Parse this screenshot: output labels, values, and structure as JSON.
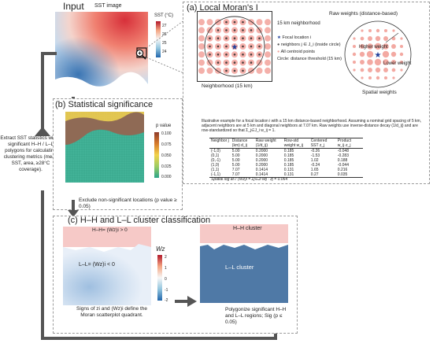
{
  "input": {
    "heading": "Input",
    "sst_image_label": "SST image",
    "colorbar_title": "SST (°C)",
    "colorbar_ticks": [
      "27",
      "26",
      "25",
      "24"
    ]
  },
  "side_note": "Extract SST statistics within significant H–H / L–L polygons for calculating clustering metrics (mean SST, area, ≥28°C coverage).",
  "panel_a": {
    "title": "(a) Local Moran's I",
    "neighborhood_top": "15 km neighborhood",
    "raw_weights_label": "Raw weights (distance-based)",
    "legend": [
      {
        "glyph": "★",
        "text": "Focal location i"
      },
      {
        "glyph": "●",
        "text": "neighbors j ∈ J_i (inside circle)"
      },
      {
        "glyph": "●",
        "text": "All centroid points"
      },
      {
        "glyph": "",
        "text": "Circle: distance threshold (15 km)"
      }
    ],
    "neighborhood_bottom": "Neighborhood (15 km)",
    "higher_weight": "Higher weight",
    "lower_weight": "Lower weight",
    "spatial_weights": "Spatial weights",
    "caption": "Illustrative example for a focal location i with a 15 km distance-based neighborhood. Assuming a nominal grid spacing of 5 km, adjacent neighbors are at 5 km and diagonal neighbors at 7.07 km. Raw weights use inverse-distance decay (1/d_ij) and are row-standardized so that Σ_j∈J_i w_ij = 1.",
    "table": {
      "headers": [
        "Neighbor j",
        "Distance (km) d_ij",
        "Raw weight (1/d_ij)",
        "Row-std weight w_ij",
        "Centered SST z_j",
        "Product w_ij·z_j"
      ],
      "rows": [
        [
          "(-1,0)",
          "5.00",
          "0.2000",
          "0.185",
          "-0.26",
          "-0.048"
        ],
        [
          "(0,1)",
          "5.00",
          "0.2000",
          "0.185",
          "-1.53",
          "-0.283"
        ],
        [
          "(0,-1)",
          "5.00",
          "0.2000",
          "0.185",
          "1.02",
          "0.188"
        ],
        [
          "(1,0)",
          "5.00",
          "0.2000",
          "0.185",
          "-0.24",
          "-0.044"
        ],
        [
          "(1,1)",
          "7.07",
          "0.1414",
          "0.131",
          "1.65",
          "0.216"
        ],
        [
          "(-1,1)",
          "7.07",
          "0.1414",
          "0.131",
          "0.27",
          "0.035"
        ]
      ],
      "footer": "Spatial log at i: (Wz)i = Σj∈Ji wij · zj = 0.064"
    }
  },
  "panel_b": {
    "title": "(b) Statistical significance",
    "colorbar_title": "p value",
    "colorbar_ticks": [
      "0.100",
      "0.075",
      "0.050",
      "0.025",
      "0.000"
    ],
    "exclude_note": "Exclude non-significant locations (p value ≥ 0.05)"
  },
  "panel_c": {
    "title": "(c) H–H and L–L cluster classification",
    "hh_label": "H–H= (Wz)i > 0",
    "ll_label": "L–L= (Wz)i < 0",
    "colorbar_title": "Wz",
    "colorbar_ticks": [
      "2",
      "1",
      "0",
      "-1",
      "-2"
    ],
    "signs_note": "Signs of zi and (Wz)i define the Moran scatterplot quadrant.",
    "hh_cluster": "H–H cluster",
    "ll_cluster": "L–L cluster",
    "polygonize_note": "Polygonize significant H–H and L–L regions; Sig (p ≤ 0.05)"
  }
}
